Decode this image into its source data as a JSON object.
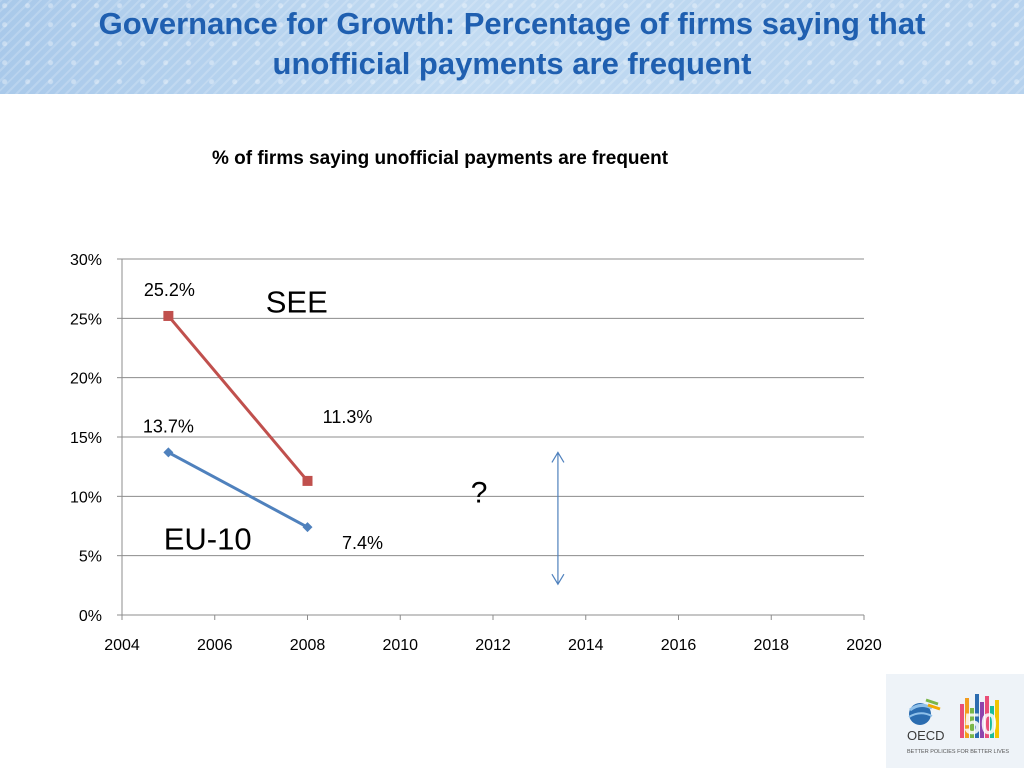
{
  "slide": {
    "title": "Governance for Growth: Percentage of firms saying that unofficial payments are frequent"
  },
  "chart_data": {
    "type": "line",
    "title": "% of firms saying unofficial payments are frequent",
    "xlabel": "",
    "ylabel": "",
    "xlim": [
      2004,
      2020
    ],
    "ylim": [
      0,
      0.3
    ],
    "x_ticks": [
      2004,
      2006,
      2008,
      2010,
      2012,
      2014,
      2016,
      2018,
      2020
    ],
    "y_ticks": [
      0,
      0.05,
      0.1,
      0.15,
      0.2,
      0.25,
      0.3
    ],
    "y_tick_labels": [
      "0%",
      "5%",
      "10%",
      "15%",
      "20%",
      "25%",
      "30%"
    ],
    "grid": true,
    "series": [
      {
        "name": "SEE",
        "color": "#c0504d",
        "marker": "square",
        "points": [
          {
            "x": 2005,
            "y": 0.252
          },
          {
            "x": 2008,
            "y": 0.113
          }
        ],
        "data_labels": [
          "25.2%",
          "11.3%"
        ]
      },
      {
        "name": "EU-10",
        "color": "#4f81bd",
        "marker": "diamond",
        "points": [
          {
            "x": 2005,
            "y": 0.137
          },
          {
            "x": 2008,
            "y": 0.074
          }
        ],
        "data_labels": [
          "13.7%",
          "7.4%"
        ]
      }
    ],
    "annotations": [
      {
        "text": "?",
        "x": 2011.7,
        "y": 0.095
      },
      {
        "type": "double-arrow",
        "x": 2013.4,
        "y_from": 0.137,
        "y_to": 0.026,
        "color": "#4f81bd"
      }
    ]
  },
  "logo": {
    "brand_text": "OECD",
    "anniversary_text": "50",
    "tagline": "BETTER POLICIES FOR BETTER LIVES"
  }
}
